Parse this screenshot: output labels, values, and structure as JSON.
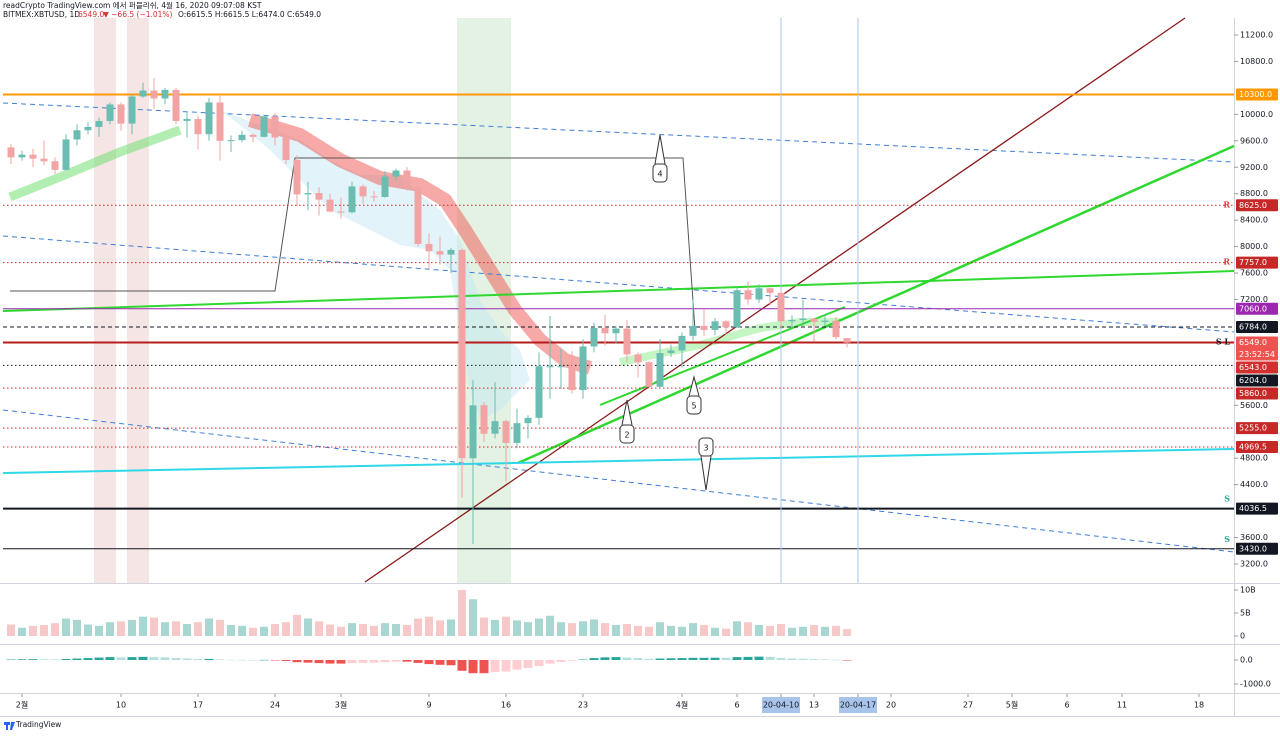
{
  "chart_data": {
    "type": "candlestick",
    "header": "readCrypto TradingView.com 에서 퍼블리쉬, 4월 16, 2020 09:07:08 KST",
    "symbol": "BITMEX:XBTUSD, 1D",
    "last": "6549.0",
    "change": "▼ −66.5 (−1.01%)",
    "ohlc": "O:6615.5 H:6615.5 L:6474.0 C:6549.0",
    "footer": "TradingView",
    "up_color": "#6cbdb1",
    "down_color": "#f2a3a3",
    "x": [
      "2020-01-31",
      "2020-02-01",
      "2020-02-02",
      "2020-02-03",
      "2020-02-04",
      "2020-02-05",
      "2020-02-06",
      "2020-02-07",
      "2020-02-08",
      "2020-02-09",
      "2020-02-10",
      "2020-02-11",
      "2020-02-12",
      "2020-02-13",
      "2020-02-14",
      "2020-02-15",
      "2020-02-16",
      "2020-02-17",
      "2020-02-18",
      "2020-02-19",
      "2020-02-20",
      "2020-02-21",
      "2020-02-22",
      "2020-02-23",
      "2020-02-24",
      "2020-02-25",
      "2020-02-26",
      "2020-02-27",
      "2020-02-28",
      "2020-02-29",
      "2020-03-01",
      "2020-03-02",
      "2020-03-03",
      "2020-03-04",
      "2020-03-05",
      "2020-03-06",
      "2020-03-07",
      "2020-03-08",
      "2020-03-09",
      "2020-03-10",
      "2020-03-11",
      "2020-03-12",
      "2020-03-13",
      "2020-03-14",
      "2020-03-15",
      "2020-03-16",
      "2020-03-17",
      "2020-03-18",
      "2020-03-19",
      "2020-03-20",
      "2020-03-21",
      "2020-03-22",
      "2020-03-23",
      "2020-03-24",
      "2020-03-25",
      "2020-03-26",
      "2020-03-27",
      "2020-03-28",
      "2020-03-29",
      "2020-03-30",
      "2020-03-31",
      "2020-04-01",
      "2020-04-02",
      "2020-04-03",
      "2020-04-04",
      "2020-04-05",
      "2020-04-06",
      "2020-04-07",
      "2020-04-08",
      "2020-04-09",
      "2020-04-10",
      "2020-04-11",
      "2020-04-12",
      "2020-04-13",
      "2020-04-14",
      "2020-04-15",
      "2020-04-16"
    ],
    "candles": [
      [
        9500,
        9550,
        9250,
        9350
      ],
      [
        9350,
        9450,
        9300,
        9390
      ],
      [
        9390,
        9480,
        9200,
        9330
      ],
      [
        9330,
        9600,
        9230,
        9290
      ],
      [
        9290,
        9350,
        9100,
        9160
      ],
      [
        9160,
        9700,
        9150,
        9620
      ],
      [
        9620,
        9850,
        9530,
        9760
      ],
      [
        9760,
        9880,
        9700,
        9810
      ],
      [
        9810,
        9950,
        9660,
        9900
      ],
      [
        9900,
        10180,
        9850,
        10150
      ],
      [
        10150,
        10180,
        9750,
        9860
      ],
      [
        9860,
        10300,
        9700,
        10270
      ],
      [
        10270,
        10480,
        10250,
        10360
      ],
      [
        10360,
        10550,
        10080,
        10240
      ],
      [
        10240,
        10400,
        10150,
        10370
      ],
      [
        10370,
        10400,
        9850,
        9900
      ],
      [
        9900,
        10050,
        9650,
        9930
      ],
      [
        9930,
        9980,
        9470,
        9700
      ],
      [
        9700,
        10250,
        9600,
        10180
      ],
      [
        10180,
        10280,
        9300,
        9600
      ],
      [
        9600,
        9680,
        9430,
        9610
      ],
      [
        9610,
        9750,
        9580,
        9690
      ],
      [
        9690,
        9710,
        9580,
        9660
      ],
      [
        9660,
        10000,
        9650,
        9970
      ],
      [
        9970,
        10020,
        9530,
        9650
      ],
      [
        9650,
        9680,
        9250,
        9310
      ],
      [
        9310,
        9380,
        8620,
        8790
      ],
      [
        8790,
        8980,
        8550,
        8810
      ],
      [
        8810,
        8900,
        8470,
        8710
      ],
      [
        8710,
        8800,
        8520,
        8530
      ],
      [
        8530,
        8740,
        8420,
        8520
      ],
      [
        8520,
        8980,
        8500,
        8910
      ],
      [
        8910,
        8940,
        8650,
        8760
      ],
      [
        8760,
        8840,
        8680,
        8750
      ],
      [
        8750,
        9140,
        8740,
        9060
      ],
      [
        9060,
        9180,
        9000,
        9150
      ],
      [
        9150,
        9200,
        8850,
        8900
      ],
      [
        8900,
        8900,
        8000,
        8040
      ],
      [
        8040,
        8200,
        7650,
        7930
      ],
      [
        7930,
        8150,
        7730,
        7880
      ],
      [
        7880,
        7980,
        7600,
        7950
      ],
      [
        7950,
        7970,
        4200,
        4800
      ],
      [
        4800,
        5980,
        3500,
        5600
      ],
      [
        5600,
        5650,
        5050,
        5170
      ],
      [
        5170,
        5950,
        5100,
        5360
      ],
      [
        5360,
        5380,
        4450,
        5030
      ],
      [
        5030,
        5550,
        4950,
        5330
      ],
      [
        5330,
        5450,
        5100,
        5410
      ],
      [
        5410,
        6400,
        5300,
        6190
      ],
      [
        6190,
        6950,
        5700,
        6190
      ],
      [
        6190,
        6450,
        5850,
        6190
      ],
      [
        6190,
        6420,
        5780,
        5830
      ],
      [
        5830,
        6600,
        5700,
        6490
      ],
      [
        6490,
        6850,
        6400,
        6770
      ],
      [
        6770,
        6970,
        6500,
        6690
      ],
      [
        6690,
        6790,
        6530,
        6760
      ],
      [
        6760,
        6890,
        6250,
        6370
      ],
      [
        6370,
        6400,
        6020,
        6250
      ],
      [
        6250,
        6270,
        5880,
        5880
      ],
      [
        5880,
        6600,
        5860,
        6390
      ],
      [
        6390,
        6520,
        6330,
        6430
      ],
      [
        6430,
        6700,
        6170,
        6650
      ],
      [
        6650,
        7200,
        6580,
        6800
      ],
      [
        6800,
        7050,
        6650,
        6740
      ],
      [
        6740,
        6920,
        6660,
        6870
      ],
      [
        6870,
        6890,
        6670,
        6780
      ],
      [
        6780,
        7380,
        6770,
        7340
      ],
      [
        7340,
        7470,
        7120,
        7200
      ],
      [
        7200,
        7430,
        7150,
        7370
      ],
      [
        7370,
        7380,
        7110,
        7300
      ],
      [
        7300,
        7320,
        6770,
        6870
      ],
      [
        6870,
        6960,
        6780,
        6890
      ],
      [
        6890,
        7200,
        6800,
        6910
      ],
      [
        6910,
        6920,
        6570,
        6860
      ],
      [
        6860,
        6980,
        6800,
        6880
      ],
      [
        6880,
        6940,
        6600,
        6630
      ],
      [
        6615.5,
        6615.5,
        6474,
        6549
      ]
    ],
    "ylim": [
      3200,
      11200
    ],
    "yticks": [
      {
        "value": 11200,
        "label": "11200.0"
      },
      {
        "value": 10800,
        "label": "10800.0"
      },
      {
        "value": 10000,
        "label": "10000.0"
      },
      {
        "value": 9600,
        "label": "9600.0"
      },
      {
        "value": 9200,
        "label": "9200.0"
      },
      {
        "value": 8800,
        "label": "8800.0"
      },
      {
        "value": 8400,
        "label": "8400.0"
      },
      {
        "value": 8000,
        "label": "8000.0"
      },
      {
        "value": 7600,
        "label": "7600.0"
      },
      {
        "value": 7200,
        "label": "7200.0"
      },
      {
        "value": 5600,
        "label": "5600.0"
      },
      {
        "value": 4800,
        "label": "4800.0"
      },
      {
        "value": 4400,
        "label": "4400.0"
      },
      {
        "value": 3600,
        "label": "3600.0"
      },
      {
        "value": 3200,
        "label": "3200.0"
      }
    ],
    "levels": [
      {
        "value": 10300,
        "label": "10300.0",
        "color": "#ff9800",
        "line": "solid",
        "width": 2
      },
      {
        "value": 8625,
        "label": "8625.0",
        "color": "#c62828",
        "line": "dotted",
        "marker": "R"
      },
      {
        "value": 7757,
        "label": "7757.0",
        "color": "#c62828",
        "line": "dotted",
        "marker": "R"
      },
      {
        "value": 7060,
        "label": "7060.0",
        "color": "#9c27b0",
        "line": "solid"
      },
      {
        "value": 6784,
        "label": "6784.0",
        "color": "#131722",
        "line": "dashed"
      },
      {
        "value": 6549,
        "label": "6549.0",
        "color": "#b71c1c",
        "line": "solid",
        "width": 2,
        "marker": "S L",
        "countdown": "23:52:54"
      },
      {
        "value": 6543,
        "label": "6543.0",
        "color": "#d32f2f",
        "line": "none"
      },
      {
        "value": 6204,
        "label": "6204.0",
        "color": "#131722",
        "line": "dotted"
      },
      {
        "value": 5860,
        "label": "5860.0",
        "color": "#c62828",
        "line": "dotted"
      },
      {
        "value": 5255,
        "label": "5255.0",
        "color": "#c62828",
        "line": "dotted"
      },
      {
        "value": 4969.5,
        "label": "4969.5",
        "color": "#c62828",
        "line": "dotted"
      },
      {
        "value": 4036.5,
        "label": "4036.5",
        "color": "#131722",
        "line": "solid",
        "width": 2,
        "marker": "S"
      },
      {
        "value": 3430,
        "label": "3430.0",
        "color": "#131722",
        "line": "solid",
        "marker": "S"
      }
    ],
    "xticks": [
      {
        "value": "2020-02-01",
        "label": "2월"
      },
      {
        "value": "2020-02-10",
        "label": "10"
      },
      {
        "value": "2020-02-17",
        "label": "17"
      },
      {
        "value": "2020-02-24",
        "label": "24"
      },
      {
        "value": "2020-03-01",
        "label": "3월"
      },
      {
        "value": "2020-03-09",
        "label": "9"
      },
      {
        "value": "2020-03-16",
        "label": "16"
      },
      {
        "value": "2020-03-23",
        "label": "23"
      },
      {
        "value": "2020-04-01",
        "label": "4월"
      },
      {
        "value": "2020-04-06",
        "label": "6"
      },
      {
        "value": "2020-04-10",
        "label": "20-04-10",
        "highlight": true
      },
      {
        "value": "2020-04-13",
        "label": "13"
      },
      {
        "value": "2020-04-17",
        "label": "20-04-17",
        "highlight": true
      },
      {
        "value": "2020-04-20",
        "label": "20"
      },
      {
        "value": "2020-04-27",
        "label": "27"
      },
      {
        "value": "2020-05-01",
        "label": "5월"
      },
      {
        "value": "2020-05-06",
        "label": "6"
      },
      {
        "value": "2020-05-11",
        "label": "11"
      },
      {
        "value": "2020-05-18",
        "label": "18"
      }
    ],
    "volume": [
      2.5,
      1.8,
      2.2,
      2.4,
      2.8,
      3.8,
      3.5,
      2.5,
      2.2,
      3.0,
      3.2,
      3.5,
      4.2,
      4.0,
      3.0,
      3.2,
      2.6,
      3.0,
      3.8,
      3.5,
      2.4,
      2.2,
      1.8,
      2.0,
      2.6,
      3.0,
      4.6,
      3.8,
      3.2,
      2.5,
      2.0,
      2.8,
      2.6,
      2.2,
      2.8,
      2.6,
      2.4,
      3.8,
      4.2,
      3.4,
      3.6,
      10.0,
      8.0,
      4.0,
      3.5,
      4.2,
      3.4,
      3.0,
      3.8,
      4.4,
      3.0,
      2.8,
      3.2,
      3.6,
      2.8,
      2.4,
      2.6,
      2.2,
      2.0,
      3.0,
      2.2,
      2.0,
      2.8,
      2.4,
      1.8,
      1.6,
      3.2,
      3.0,
      2.4,
      2.2,
      2.6,
      1.8,
      2.0,
      2.4,
      2.0,
      2.2,
      1.5
    ],
    "vlim": [
      0,
      10
    ],
    "vticks": [
      {
        "value": 10,
        "label": "10B"
      },
      {
        "value": 5,
        "label": "5B"
      },
      0
    ],
    "macd_hist": [
      20,
      30,
      35,
      30,
      25,
      40,
      60,
      80,
      100,
      120,
      110,
      120,
      130,
      120,
      110,
      80,
      60,
      40,
      45,
      25,
      10,
      5,
      0,
      5,
      -10,
      -40,
      -90,
      -110,
      -130,
      -150,
      -150,
      -130,
      -120,
      -110,
      -90,
      -70,
      -70,
      -120,
      -170,
      -200,
      -220,
      -450,
      -550,
      -550,
      -500,
      -480,
      -400,
      -330,
      -250,
      -150,
      -80,
      -30,
      20,
      80,
      110,
      120,
      100,
      80,
      50,
      60,
      70,
      80,
      90,
      90,
      95,
      90,
      120,
      130,
      140,
      130,
      80,
      60,
      50,
      35,
      25,
      10,
      -5
    ],
    "macd_colors": [
      "#26a69a",
      "#b2dfdb",
      "#ef5350",
      "#ffcdd2"
    ],
    "mticks": [
      {
        "value": 0,
        "label": "0.0"
      },
      {
        "value": -1000,
        "label": "-1000.0"
      }
    ],
    "annotations": [
      "2",
      "3",
      "4",
      "5"
    ]
  }
}
